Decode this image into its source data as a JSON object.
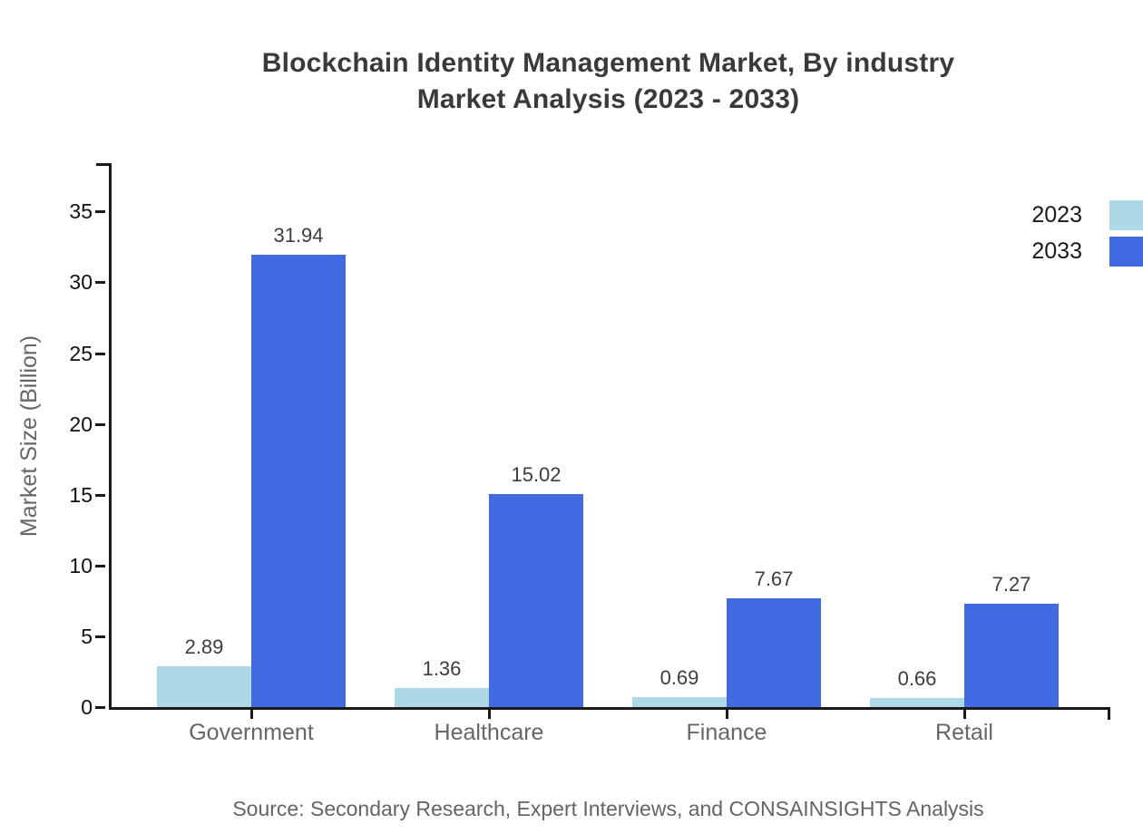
{
  "title": {
    "line1": "Blockchain Identity Management Market, By industry",
    "line2": "Market Analysis (2023 - 2033)"
  },
  "source": "Source: Secondary Research, Expert Interviews, and CONSAINSIGHTS Analysis",
  "colors": {
    "series2023": "#ADD8E6",
    "series2033": "#4169E1",
    "axis": "#1a1a1a",
    "title_text": "#3a3a3a",
    "muted_text": "#666666",
    "value_text": "#3d3d3d"
  },
  "chart_data": {
    "type": "bar",
    "title": "Blockchain Identity Management Market, By industry Market Analysis (2023 - 2033)",
    "categories": [
      "Government",
      "Healthcare",
      "Finance",
      "Retail"
    ],
    "series": [
      {
        "name": "2023",
        "color_key": "series2023",
        "values": [
          2.89,
          1.36,
          0.69,
          0.66
        ]
      },
      {
        "name": "2033",
        "color_key": "series2033",
        "values": [
          31.94,
          15.02,
          7.67,
          7.27
        ]
      }
    ],
    "xlabel": "",
    "ylabel": "Market Size (Billion)",
    "yticks": [
      0,
      5,
      10,
      15,
      20,
      25,
      30,
      35
    ],
    "ylim": [
      0,
      38.4
    ],
    "grid": false,
    "legend_position": "top-right",
    "value_labels": true
  }
}
